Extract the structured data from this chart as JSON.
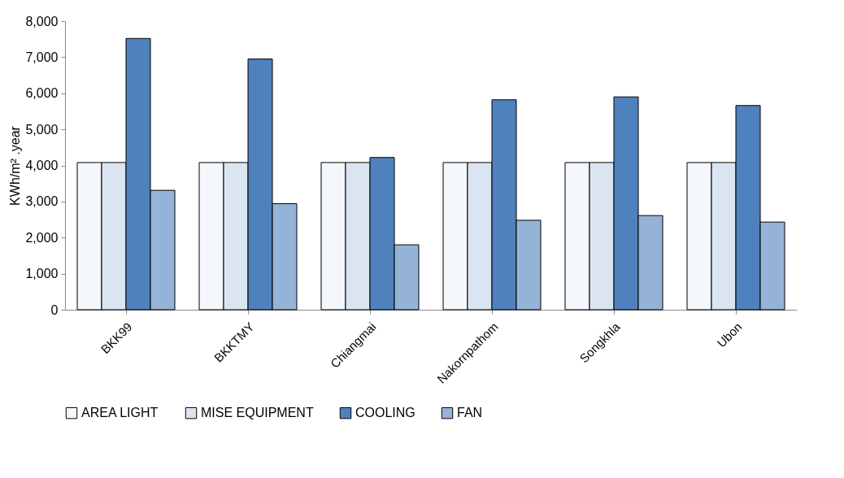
{
  "chart_data": {
    "type": "bar",
    "ylabel": "KWh/m² .year",
    "categories": [
      "BKK99",
      "BKKTMY",
      "Chiangmai",
      "Nakornpathom",
      "Songkhla",
      "Ubon"
    ],
    "series": [
      {
        "name": "AREA LIGHT",
        "color": "#f4f7fb",
        "values": [
          4080,
          4080,
          4080,
          4080,
          4080,
          4080
        ]
      },
      {
        "name": "MISE EQUIPMENT",
        "color": "#dbe5f1",
        "values": [
          4080,
          4080,
          4080,
          4080,
          4080,
          4080
        ]
      },
      {
        "name": "COOLING",
        "color": "#4f81bd",
        "values": [
          7520,
          6950,
          4220,
          5820,
          5900,
          5660
        ]
      },
      {
        "name": "FAN",
        "color": "#95b3d7",
        "values": [
          3310,
          2940,
          1800,
          2480,
          2610,
          2430
        ]
      }
    ],
    "ylim": [
      0,
      8000
    ],
    "yticks": [
      {
        "value": 0,
        "label": "0"
      },
      {
        "value": 1000,
        "label": "1,000"
      },
      {
        "value": 2000,
        "label": "2,000"
      },
      {
        "value": 3000,
        "label": "3,000"
      },
      {
        "value": 4000,
        "label": "4,000"
      },
      {
        "value": 5000,
        "label": "5,000"
      },
      {
        "value": 6000,
        "label": "6,000"
      },
      {
        "value": 7000,
        "label": "7,000"
      },
      {
        "value": 8000,
        "label": "8,000"
      }
    ],
    "grid": false,
    "legend": "bottom"
  }
}
